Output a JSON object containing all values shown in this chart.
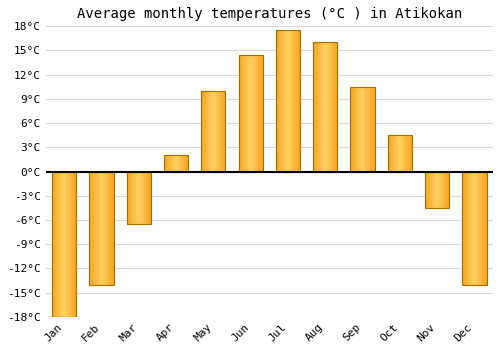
{
  "title": "Average monthly temperatures (°C ) in Atikokan",
  "months": [
    "Jan",
    "Feb",
    "Mar",
    "Apr",
    "May",
    "Jun",
    "Jul",
    "Aug",
    "Sep",
    "Oct",
    "Nov",
    "Dec"
  ],
  "values": [
    -18,
    -14,
    -6.5,
    2,
    10,
    14.5,
    17.5,
    16,
    10.5,
    4.5,
    -4.5,
    -14
  ],
  "bar_color_outer": "#F5A623",
  "bar_color_inner": "#FFD060",
  "bar_edge_color": "#A07000",
  "background_color": "#FFFFFF",
  "grid_color": "#D8D8D8",
  "ylim": [
    -18,
    18
  ],
  "yticks": [
    -18,
    -15,
    -12,
    -9,
    -6,
    -3,
    0,
    3,
    6,
    9,
    12,
    15,
    18
  ],
  "ytick_labels": [
    "-18°C",
    "-15°C",
    "-12°C",
    "-9°C",
    "-6°C",
    "-3°C",
    "0°C",
    "3°C",
    "6°C",
    "9°C",
    "12°C",
    "15°C",
    "18°C"
  ],
  "title_fontsize": 10,
  "tick_fontsize": 8,
  "bar_width": 0.65
}
